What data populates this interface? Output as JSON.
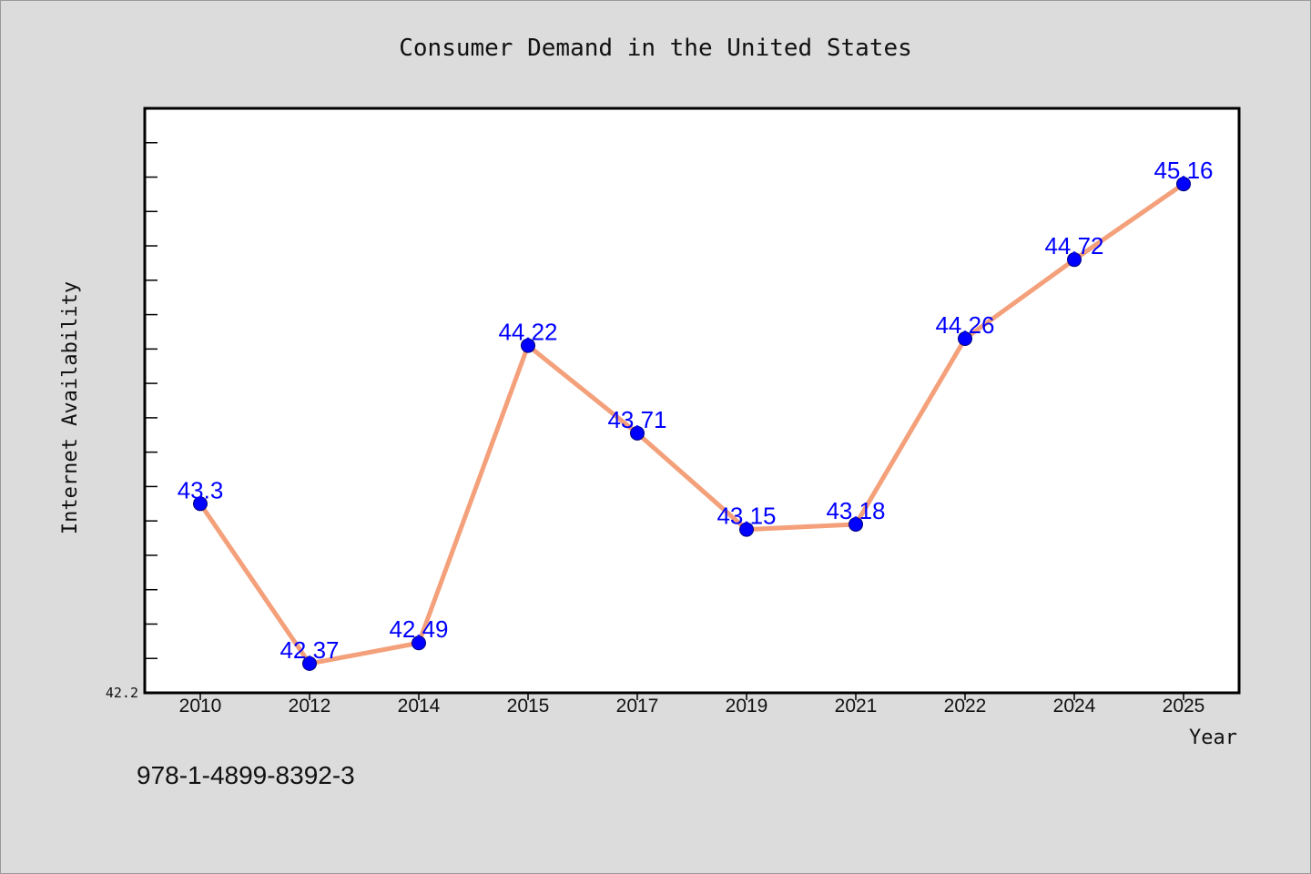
{
  "chart_data": {
    "type": "line",
    "title": "Consumer Demand in the United States",
    "xlabel": "Year",
    "ylabel": "Internet Availability",
    "categories": [
      "2010",
      "2012",
      "2014",
      "2015",
      "2017",
      "2019",
      "2021",
      "2022",
      "2024",
      "2025"
    ],
    "series": [
      {
        "values": [
          43.3,
          42.37,
          42.49,
          44.22,
          43.71,
          43.15,
          43.18,
          44.26,
          44.72,
          45.16
        ]
      }
    ],
    "data_labels": [
      "43.3",
      "42.37",
      "42.49",
      "44.22",
      "43.71",
      "43.15",
      "43.18",
      "44.26",
      "44.72",
      "45.16"
    ],
    "ylim": [
      42.2,
      45.6
    ],
    "ytick_labels": [
      "42.2"
    ],
    "grid": false,
    "line_color": "#f4a07a",
    "marker_color": "#0000ff",
    "label_color": "#0000ff"
  },
  "footer": {
    "isbn": "978-1-4899-8392-3"
  }
}
